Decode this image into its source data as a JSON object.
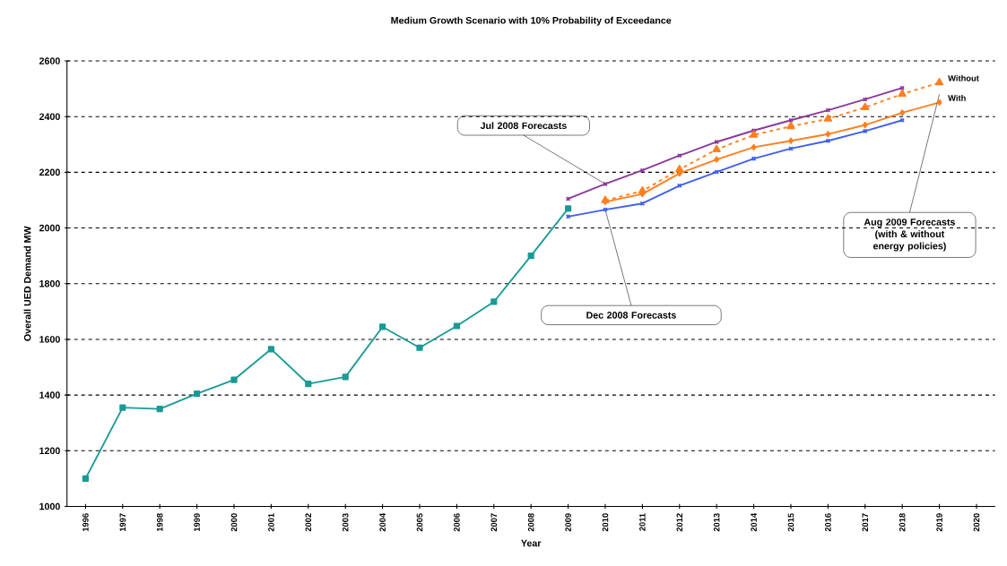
{
  "chart_data": {
    "type": "line",
    "title": "Medium Growth Scenario with 10% Probability of Exceedance",
    "xlabel": "Year",
    "ylabel": "Overall UED Demand MW",
    "categories": [
      "1996",
      "1997",
      "1998",
      "1999",
      "2000",
      "2001",
      "2002",
      "2003",
      "2004",
      "2005",
      "2006",
      "2007",
      "2008",
      "2009",
      "2010",
      "2011",
      "2012",
      "2013",
      "2014",
      "2015",
      "2016",
      "2017",
      "2018",
      "2019",
      "2020"
    ],
    "series": [
      {
        "color": "#1a9a96",
        "marker": "square",
        "values": [
          1100,
          1355,
          1350,
          1405,
          1455,
          1565,
          1440,
          1465,
          1645,
          1570,
          1648,
          1735,
          1900,
          2070,
          null,
          null,
          null,
          null,
          null,
          null,
          null,
          null,
          null,
          null,
          null
        ]
      },
      {
        "color": "#8b3a9c",
        "marker": "cross",
        "values": [
          null,
          null,
          null,
          null,
          null,
          null,
          null,
          null,
          null,
          null,
          null,
          null,
          null,
          2105,
          2158,
          2207,
          2260,
          2309,
          2350,
          2387,
          2423,
          2462,
          2503,
          null,
          null
        ]
      },
      {
        "color": "#3f5ff0",
        "marker": "cross",
        "values": [
          null,
          null,
          null,
          null,
          null,
          null,
          null,
          null,
          null,
          null,
          null,
          null,
          null,
          2041,
          2066,
          2088,
          2152,
          2201,
          2249,
          2285,
          2313,
          2348,
          2387,
          null,
          null
        ]
      },
      {
        "name": "Without",
        "color": "#ff7f1f",
        "marker": "triangle",
        "line_style": "dashed",
        "values": [
          null,
          null,
          null,
          null,
          null,
          null,
          null,
          null,
          null,
          null,
          null,
          null,
          null,
          null,
          2099,
          2133,
          2210,
          2282,
          2334,
          2365,
          2392,
          2433,
          2481,
          2522,
          null
        ]
      },
      {
        "name": "With",
        "color": "#ff7f1f",
        "marker": "diamond",
        "values": [
          null,
          null,
          null,
          null,
          null,
          null,
          null,
          null,
          null,
          null,
          null,
          null,
          null,
          null,
          2094,
          2122,
          2196,
          2246,
          2290,
          2313,
          2337,
          2370,
          2414,
          2451,
          null
        ]
      }
    ],
    "ylim": [
      1000,
      2600
    ],
    "yticks": [
      1000,
      1200,
      1400,
      1600,
      1800,
      2000,
      2200,
      2400,
      2600
    ],
    "grid": "y",
    "legend": false,
    "annotations": [
      {
        "text": "Jul 2008 Forecasts",
        "x": "2010",
        "y": 2158
      },
      {
        "text": "Dec 2008 Forecasts",
        "x": "2010",
        "y": 2066
      },
      "Aug 2009 Forecasts (with & without energy policies)"
    ]
  }
}
